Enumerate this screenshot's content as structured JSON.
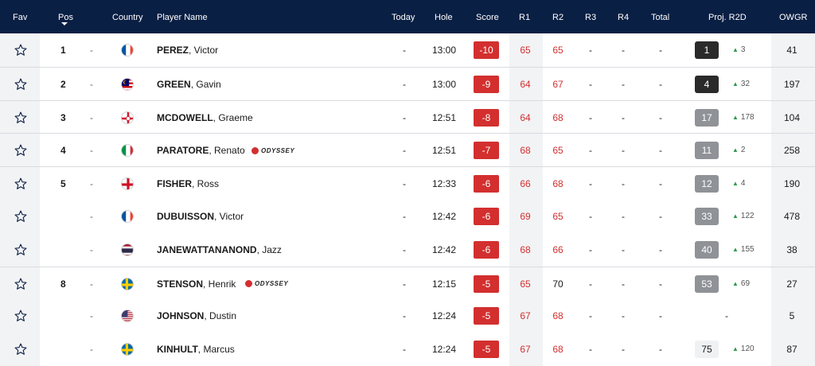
{
  "header": {
    "fav": "Fav",
    "pos": "Pos",
    "country": "Country",
    "player": "Player Name",
    "today": "Today",
    "hole": "Hole",
    "score": "Score",
    "r1": "R1",
    "r2": "R2",
    "r3": "R3",
    "r4": "R4",
    "total": "Total",
    "proj": "Proj. R2D",
    "owgr": "OWGR"
  },
  "rows": [
    {
      "pos": "1",
      "mv": "-",
      "country": "France",
      "last": "PEREZ",
      "first": ", Victor",
      "sponsor": "",
      "today": "-",
      "hole": "13:00",
      "score": "-10",
      "r1": "65",
      "r2": "65",
      "r3": "-",
      "r4": "-",
      "total": "-",
      "proj": "1",
      "proj_style": "dark",
      "move": "3",
      "owgr": "41"
    },
    {
      "pos": "2",
      "mv": "-",
      "country": "Malaysia",
      "last": "GREEN",
      "first": ", Gavin",
      "sponsor": "",
      "today": "-",
      "hole": "13:00",
      "score": "-9",
      "r1": "64",
      "r2": "67",
      "r3": "-",
      "r4": "-",
      "total": "-",
      "proj": "4",
      "proj_style": "dark",
      "move": "32",
      "owgr": "197"
    },
    {
      "pos": "3",
      "mv": "-",
      "country": "Northern Ireland",
      "last": "MCDOWELL",
      "first": ", Graeme",
      "sponsor": "",
      "today": "-",
      "hole": "12:51",
      "score": "-8",
      "r1": "64",
      "r2": "68",
      "r3": "-",
      "r4": "-",
      "total": "-",
      "proj": "17",
      "proj_style": "grey",
      "move": "178",
      "owgr": "104"
    },
    {
      "pos": "4",
      "mv": "-",
      "country": "Italy",
      "last": "PARATORE",
      "first": ", Renato",
      "sponsor": "ODYSSEY",
      "today": "-",
      "hole": "12:51",
      "score": "-7",
      "r1": "68",
      "r2": "65",
      "r3": "-",
      "r4": "-",
      "total": "-",
      "proj": "11",
      "proj_style": "grey",
      "move": "2",
      "owgr": "258"
    },
    {
      "pos": "5",
      "mv": "-",
      "country": "England",
      "last": "FISHER",
      "first": ", Ross",
      "sponsor": "",
      "today": "-",
      "hole": "12:33",
      "score": "-6",
      "r1": "66",
      "r2": "68",
      "r3": "-",
      "r4": "-",
      "total": "-",
      "proj": "12",
      "proj_style": "grey",
      "move": "4",
      "owgr": "190"
    },
    {
      "pos": "",
      "mv": "-",
      "country": "France",
      "last": "DUBUISSON",
      "first": ", Victor",
      "sponsor": "",
      "today": "-",
      "hole": "12:42",
      "score": "-6",
      "r1": "69",
      "r2": "65",
      "r3": "-",
      "r4": "-",
      "total": "-",
      "proj": "33",
      "proj_style": "grey",
      "move": "122",
      "owgr": "478"
    },
    {
      "pos": "",
      "mv": "-",
      "country": "Thailand",
      "last": "JANEWATTANANOND",
      "first": ", Jazz",
      "sponsor": "",
      "today": "-",
      "hole": "12:42",
      "score": "-6",
      "r1": "68",
      "r2": "66",
      "r3": "-",
      "r4": "-",
      "total": "-",
      "proj": "40",
      "proj_style": "grey",
      "move": "155",
      "owgr": "38"
    },
    {
      "pos": "8",
      "mv": "-",
      "country": "Sweden",
      "last": "STENSON",
      "first": ", Henrik",
      "sponsor": "ODYSSEY",
      "today": "-",
      "hole": "12:15",
      "score": "-5",
      "r1": "65",
      "r2": "70",
      "r3": "-",
      "r4": "-",
      "total": "-",
      "proj": "53",
      "proj_style": "grey",
      "move": "69",
      "owgr": "27"
    },
    {
      "pos": "",
      "mv": "-",
      "country": "USA",
      "last": "JOHNSON",
      "first": ", Dustin",
      "sponsor": "",
      "today": "-",
      "hole": "12:24",
      "score": "-5",
      "r1": "67",
      "r2": "68",
      "r3": "-",
      "r4": "-",
      "total": "-",
      "proj": "-",
      "proj_style": "none",
      "move": "",
      "owgr": "5"
    },
    {
      "pos": "",
      "mv": "-",
      "country": "Sweden",
      "last": "KINHULT",
      "first": ", Marcus",
      "sponsor": "",
      "today": "-",
      "hole": "12:24",
      "score": "-5",
      "r1": "67",
      "r2": "68",
      "r3": "-",
      "r4": "-",
      "total": "-",
      "proj": "75",
      "proj_style": "plain",
      "move": "120",
      "owgr": "87"
    }
  ],
  "colors": {
    "header_bg": "#0a1f44",
    "score_bg": "#d32f2f",
    "round_red": "#d32f2f",
    "move_up": "#2e9a4a"
  }
}
